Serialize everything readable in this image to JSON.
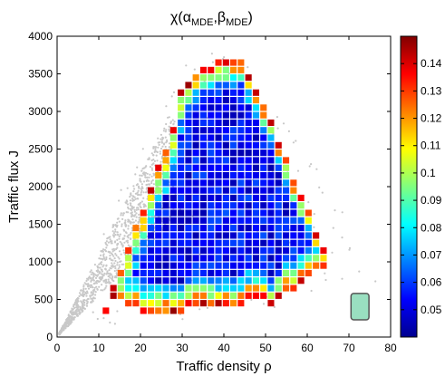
{
  "chart_data": {
    "type": "heatmap",
    "title": {
      "main": "χ(α",
      "sub1": "MDE",
      "comma": ",β",
      "sub2": "MDE",
      "close": ")"
    },
    "xlabel": "Traffic density ρ",
    "ylabel": "Traffic flux J",
    "xlim": [
      0,
      80
    ],
    "ylim": [
      0,
      4000
    ],
    "x_ticks": [
      0,
      10,
      20,
      30,
      40,
      50,
      60,
      70,
      80
    ],
    "y_ticks": [
      0,
      500,
      1000,
      1500,
      2000,
      2500,
      3000,
      3500,
      4000
    ],
    "x_tick_labels": [
      "0",
      "10",
      "20",
      "30",
      "40",
      "50",
      "60",
      "70",
      "80"
    ],
    "y_tick_labels": [
      "0",
      "500",
      "1000",
      "1500",
      "2000",
      "2500",
      "3000",
      "3500",
      "4000"
    ],
    "colorbar": {
      "min": 0.04,
      "max": 0.15,
      "ticks": [
        0.05,
        0.06,
        0.07,
        0.08,
        0.09,
        0.1,
        0.11,
        0.12,
        0.13,
        0.14
      ],
      "tick_labels": [
        "0.05",
        "0.06",
        "0.07",
        "0.08",
        "0.09",
        "0.1",
        "0.11",
        "0.12",
        "0.13",
        "0.14"
      ],
      "colormap": "jet"
    },
    "cell_size": {
      "dx": 1.8,
      "dy": 100
    },
    "background_scatter_color": "#c8c8c8",
    "legend_box": {
      "x": [
        70.5,
        74.8
      ],
      "y": [
        230,
        580
      ],
      "color": "#99dfc0"
    },
    "grid": false
  }
}
